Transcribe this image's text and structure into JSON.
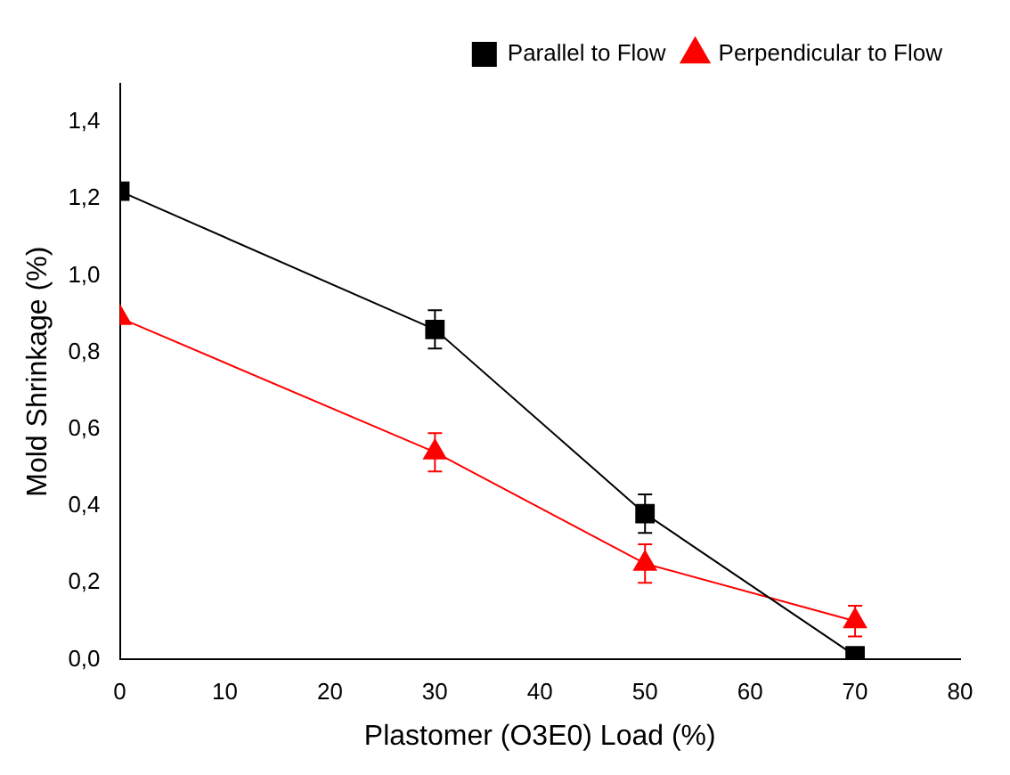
{
  "chart_data": {
    "type": "line",
    "xlabel": "Plastomer (O3E0) Load (%)",
    "ylabel": "Mold Shrinkage (%)",
    "x": [
      0,
      30,
      50,
      70
    ],
    "series": [
      {
        "name": "Parallel to Flow",
        "color": "#000000",
        "marker": "square",
        "values": [
          1.22,
          0.86,
          0.38,
          0.01
        ],
        "errors": [
          null,
          0.05,
          0.05,
          null
        ]
      },
      {
        "name": "Perpendicular to Flow",
        "color": "#ff0000",
        "marker": "triangle",
        "values": [
          0.89,
          0.54,
          0.25,
          0.1
        ],
        "errors": [
          null,
          0.05,
          0.05,
          0.04
        ]
      }
    ],
    "xlim": [
      0,
      80
    ],
    "xticks": [
      0,
      10,
      20,
      30,
      40,
      50,
      60,
      70,
      80
    ],
    "ylim": [
      0,
      1.5
    ],
    "yticks": [
      {
        "value": 0,
        "label": "0,0"
      },
      {
        "value": 0.2,
        "label": "0,2"
      },
      {
        "value": 0.4,
        "label": "0,4"
      },
      {
        "value": 0.6,
        "label": "0,6"
      },
      {
        "value": 0.8,
        "label": "0,8"
      },
      {
        "value": 1,
        "label": "1,0"
      },
      {
        "value": 1.2,
        "label": "1,2"
      },
      {
        "value": 1.4,
        "label": "1,4"
      }
    ],
    "grid": false,
    "legend": "top right",
    "line_style": "solid"
  }
}
